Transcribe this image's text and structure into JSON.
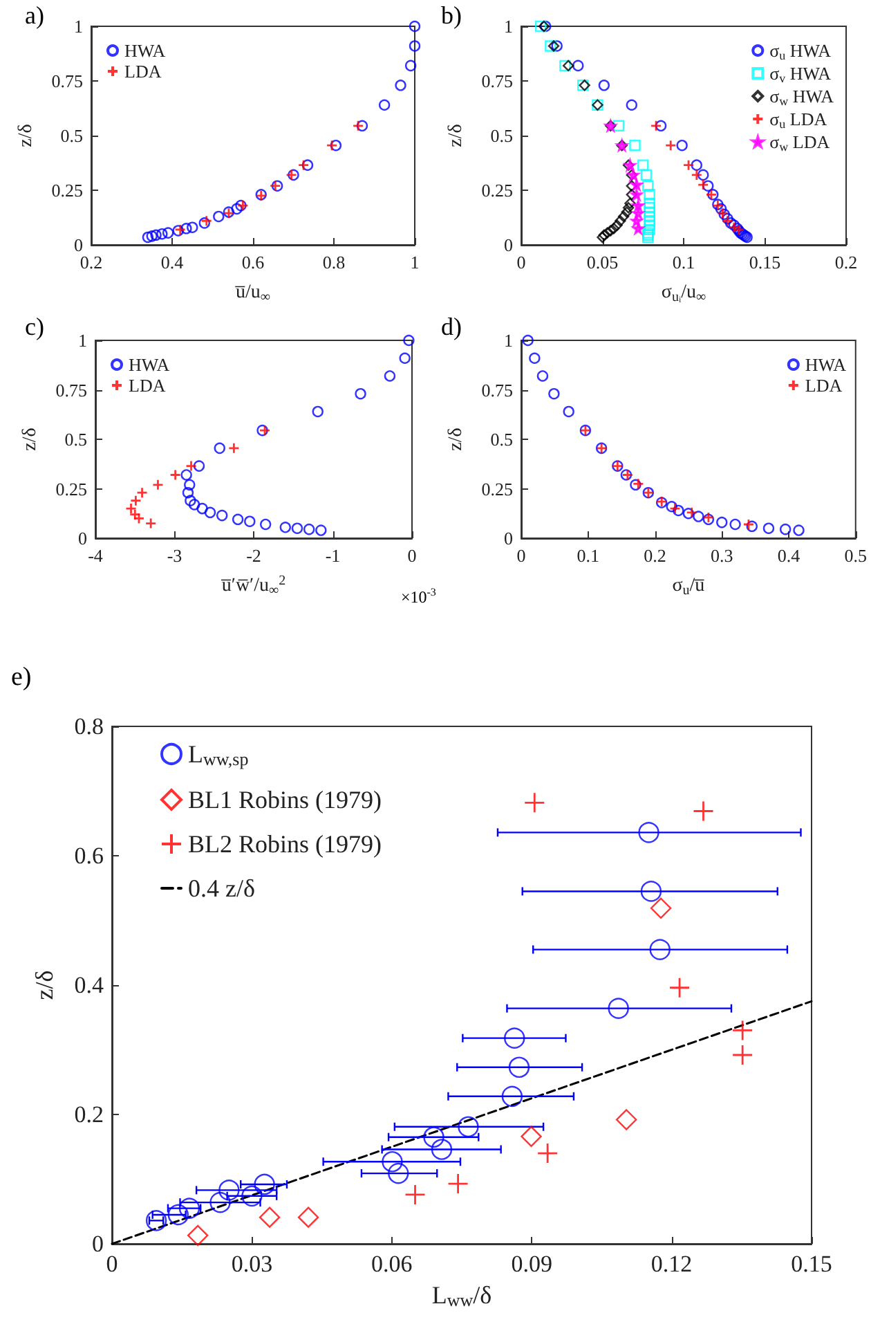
{
  "chart_data": [
    {
      "type": "scatter",
      "title": "a)",
      "xlabel": "u̅/u$_{∞}$",
      "ylabel": "z/δ",
      "xlim": [
        0.2,
        1
      ],
      "xticks": [
        0.2,
        0.4,
        0.6,
        0.8,
        1
      ],
      "ylim": [
        0,
        1
      ],
      "yticks": [
        0,
        0.25,
        0.5,
        0.75,
        1
      ],
      "legend": "top left",
      "series": [
        {
          "name": "HWA",
          "color": "#0000ff",
          "marker": "circle",
          "x": [
            1.0,
            1.0,
            0.99,
            0.965,
            0.925,
            0.87,
            0.805,
            0.735,
            0.7,
            0.66,
            0.62,
            0.57,
            0.56,
            0.54,
            0.515,
            0.48,
            0.45,
            0.435,
            0.415,
            0.39,
            0.375,
            0.36,
            0.35,
            0.34
          ],
          "values": [
            1.0,
            0.91,
            0.82,
            0.73,
            0.64,
            0.545,
            0.455,
            0.365,
            0.32,
            0.27,
            0.23,
            0.18,
            0.165,
            0.15,
            0.13,
            0.1,
            0.08,
            0.075,
            0.065,
            0.055,
            0.05,
            0.045,
            0.04,
            0.035
          ]
        },
        {
          "name": "LDA",
          "color": "#ff0000",
          "marker": "cross",
          "x": [
            0.86,
            0.795,
            0.725,
            0.695,
            0.655,
            0.62,
            0.575,
            0.54,
            0.485,
            0.42
          ],
          "values": [
            0.545,
            0.455,
            0.365,
            0.32,
            0.27,
            0.225,
            0.18,
            0.145,
            0.11,
            0.07
          ]
        }
      ]
    },
    {
      "type": "scatter",
      "title": "b)",
      "xlabel": "σ$_{uᵢ}$/u$_{∞}$",
      "ylabel": "z/δ",
      "xlim": [
        0,
        0.2
      ],
      "xticks": [
        0,
        0.05,
        0.1,
        0.15,
        0.2
      ],
      "ylim": [
        0,
        1
      ],
      "yticks": [
        0,
        0.25,
        0.5,
        0.75,
        1
      ],
      "legend": "top right",
      "series": [
        {
          "name": "σ$_{u}$ HWA",
          "color": "#0000ff",
          "marker": "circle",
          "x": [
            0.015,
            0.022,
            0.035,
            0.051,
            0.068,
            0.086,
            0.099,
            0.108,
            0.112,
            0.115,
            0.118,
            0.121,
            0.123,
            0.125,
            0.127,
            0.129,
            0.131,
            0.133,
            0.134,
            0.135,
            0.136,
            0.137,
            0.138,
            0.139
          ],
          "values": [
            1,
            0.91,
            0.82,
            0.73,
            0.64,
            0.545,
            0.455,
            0.365,
            0.32,
            0.27,
            0.23,
            0.185,
            0.165,
            0.14,
            0.12,
            0.1,
            0.09,
            0.075,
            0.065,
            0.055,
            0.05,
            0.045,
            0.04,
            0.035
          ]
        },
        {
          "name": "σ$_{v}$ HWA",
          "color": "#00ffff",
          "marker": "square",
          "x": [
            0.012,
            0.018,
            0.027,
            0.038,
            0.047,
            0.06,
            0.07,
            0.075,
            0.077,
            0.078,
            0.079,
            0.079,
            0.079,
            0.079,
            0.079,
            0.079,
            0.079,
            0.079,
            0.078,
            0.078,
            0.078
          ],
          "values": [
            1,
            0.91,
            0.82,
            0.73,
            0.64,
            0.545,
            0.455,
            0.365,
            0.32,
            0.27,
            0.23,
            0.19,
            0.17,
            0.15,
            0.13,
            0.11,
            0.09,
            0.07,
            0.055,
            0.045,
            0.035
          ]
        },
        {
          "name": "σ$_{w}$ HWA",
          "color": "#000000",
          "marker": "diamond",
          "x": [
            0.014,
            0.02,
            0.029,
            0.039,
            0.047,
            0.055,
            0.062,
            0.066,
            0.068,
            0.068,
            0.068,
            0.067,
            0.066,
            0.065,
            0.063,
            0.061,
            0.059,
            0.057,
            0.055,
            0.053,
            0.051,
            0.05
          ],
          "values": [
            1,
            0.91,
            0.82,
            0.73,
            0.64,
            0.545,
            0.455,
            0.365,
            0.32,
            0.27,
            0.23,
            0.19,
            0.17,
            0.15,
            0.13,
            0.11,
            0.09,
            0.075,
            0.065,
            0.055,
            0.045,
            0.035
          ]
        },
        {
          "name": "σ$_{u}$ LDA",
          "color": "#ff0000",
          "marker": "cross",
          "x": [
            0.083,
            0.092,
            0.103,
            0.108,
            0.112,
            0.117,
            0.121,
            0.124,
            0.127,
            0.131,
            0.134
          ],
          "values": [
            0.545,
            0.455,
            0.365,
            0.32,
            0.275,
            0.23,
            0.18,
            0.145,
            0.11,
            0.08,
            0.07
          ]
        },
        {
          "name": "σ$_{w}$ LDA",
          "color": "#ff00ff",
          "marker": "star",
          "x": [
            0.055,
            0.062,
            0.067,
            0.069,
            0.071,
            0.071,
            0.072,
            0.072,
            0.071,
            0.072
          ],
          "values": [
            0.545,
            0.455,
            0.365,
            0.32,
            0.275,
            0.23,
            0.18,
            0.145,
            0.11,
            0.075
          ]
        }
      ]
    },
    {
      "type": "scatter",
      "title": "c)",
      "xlabel": "u̅′w̅′/u$_{∞}$$^{2}$",
      "ylabel": "z/δ",
      "annotations": [
        "×10$^{-3}$"
      ],
      "xlim": [
        -4,
        0
      ],
      "xticks": [
        -4,
        -3,
        -2,
        -1,
        0
      ],
      "ylim": [
        0,
        1
      ],
      "yticks": [
        0,
        0.25,
        0.5,
        0.75,
        1
      ],
      "legend": "top left",
      "series": [
        {
          "name": "HWA",
          "color": "#0000ff",
          "marker": "circle",
          "x": [
            -0.04,
            -0.09,
            -0.28,
            -0.65,
            -1.19,
            -1.89,
            -2.43,
            -2.69,
            -2.85,
            -2.81,
            -2.83,
            -2.8,
            -2.75,
            -2.65,
            -2.55,
            -2.4,
            -2.2,
            -2.05,
            -1.85,
            -1.6,
            -1.45,
            -1.3,
            -1.15
          ],
          "values": [
            1,
            0.91,
            0.82,
            0.73,
            0.64,
            0.545,
            0.455,
            0.365,
            0.32,
            0.27,
            0.23,
            0.19,
            0.17,
            0.15,
            0.13,
            0.115,
            0.095,
            0.085,
            0.07,
            0.055,
            0.05,
            0.045,
            0.04
          ]
        },
        {
          "name": "LDA",
          "color": "#ff0000",
          "marker": "cross",
          "x": [
            -1.86,
            -2.25,
            -2.79,
            -2.99,
            -3.21,
            -3.41,
            -3.49,
            -3.55,
            -3.5,
            -3.45,
            -3.3
          ],
          "values": [
            0.545,
            0.455,
            0.365,
            0.32,
            0.27,
            0.23,
            0.19,
            0.15,
            0.12,
            0.1,
            0.075
          ]
        }
      ]
    },
    {
      "type": "scatter",
      "title": "d)",
      "xlabel": "σ$_{u}$/u̅",
      "ylabel": "z/δ",
      "xlim": [
        0,
        0.5
      ],
      "xticks": [
        0,
        0.1,
        0.2,
        0.3,
        0.4,
        0.5
      ],
      "ylim": [
        0,
        1
      ],
      "yticks": [
        0,
        0.25,
        0.5,
        0.75,
        1
      ],
      "legend": "top right",
      "series": [
        {
          "name": "HWA",
          "color": "#0000ff",
          "marker": "circle",
          "x": [
            0.01,
            0.02,
            0.032,
            0.049,
            0.071,
            0.096,
            0.12,
            0.144,
            0.157,
            0.171,
            0.19,
            0.21,
            0.225,
            0.235,
            0.25,
            0.265,
            0.28,
            0.3,
            0.32,
            0.345,
            0.37,
            0.395,
            0.415
          ],
          "values": [
            1,
            0.91,
            0.82,
            0.73,
            0.64,
            0.545,
            0.455,
            0.365,
            0.32,
            0.27,
            0.23,
            0.18,
            0.16,
            0.14,
            0.125,
            0.11,
            0.095,
            0.08,
            0.07,
            0.06,
            0.05,
            0.045,
            0.04
          ]
        },
        {
          "name": "LDA",
          "color": "#ff0000",
          "marker": "cross",
          "x": [
            0.096,
            0.12,
            0.144,
            0.159,
            0.175,
            0.19,
            0.21,
            0.23,
            0.255,
            0.28,
            0.34
          ],
          "values": [
            0.545,
            0.455,
            0.365,
            0.32,
            0.275,
            0.23,
            0.185,
            0.15,
            0.13,
            0.105,
            0.07
          ]
        }
      ]
    },
    {
      "type": "scatter",
      "title": "e)",
      "xlabel": "L$_{ww}$/δ",
      "ylabel": "z/δ",
      "xlim": [
        0,
        0.15
      ],
      "xticks": [
        0,
        0.03,
        0.06,
        0.09,
        0.12,
        0.15
      ],
      "ylim": [
        0,
        0.8
      ],
      "yticks": [
        0,
        0.2,
        0.4,
        0.6,
        0.8
      ],
      "legend": "top left",
      "series": [
        {
          "name": "L$_{ww,sp}$",
          "color": "#0000ff",
          "marker": "circle",
          "x": [
            0.0095,
            0.0142,
            0.0166,
            0.0232,
            0.0251,
            0.03,
            0.0327,
            0.0601,
            0.0614,
            0.069,
            0.0707,
            0.0764,
            0.0858,
            0.0873,
            0.0863,
            0.1086,
            0.1175,
            0.1156,
            0.1151
          ],
          "values": [
            0.036,
            0.045,
            0.055,
            0.064,
            0.083,
            0.074,
            0.092,
            0.127,
            0.109,
            0.165,
            0.146,
            0.181,
            0.228,
            0.273,
            0.318,
            0.364,
            0.455,
            0.545,
            0.636
          ],
          "xerrors": [
            [
              0.008,
              0.011
            ],
            [
              0.0087,
              0.0158
            ],
            [
              0.012,
              0.019
            ],
            [
              0.0146,
              0.0318
            ],
            [
              0.0181,
              0.0353
            ],
            [
              0.0247,
              0.0353
            ],
            [
              0.0276,
              0.0375
            ],
            [
              0.0453,
              0.0747
            ],
            [
              0.0535,
              0.0697
            ],
            [
              0.0593,
              0.0786
            ],
            [
              0.0579,
              0.0834
            ],
            [
              0.0606,
              0.0925
            ],
            [
              0.0721,
              0.099
            ],
            [
              0.074,
              0.1008
            ],
            [
              0.0752,
              0.0973
            ],
            [
              0.0847,
              0.1328
            ],
            [
              0.0903,
              0.1448
            ],
            [
              0.088,
              0.1427
            ],
            [
              0.0827,
              0.1477
            ]
          ]
        },
        {
          "name": "BL1 Robins (1979)",
          "color": "#ff0000",
          "marker": "diamond",
          "x": [
            0.0184,
            0.0338,
            0.0421,
            0.0899,
            0.1103,
            0.1177
          ],
          "values": [
            0.013,
            0.041,
            0.041,
            0.166,
            0.192,
            0.519
          ]
        },
        {
          "name": "BL2 Robins (1979)",
          "color": "#ff0000",
          "marker": "cross",
          "x": [
            0.065,
            0.0742,
            0.0934,
            0.1217,
            0.1352,
            0.1352,
            0.0906,
            0.1268
          ],
          "values": [
            0.076,
            0.093,
            0.14,
            0.396,
            0.33,
            0.292,
            0.682,
            0.669
          ]
        },
        {
          "name": "0.4 z/δ",
          "type": "line",
          "color": "#000000",
          "marker": "none",
          "line_style": "dashed",
          "x": [
            0,
            0.15
          ],
          "values": [
            0,
            0.375
          ]
        }
      ]
    }
  ]
}
